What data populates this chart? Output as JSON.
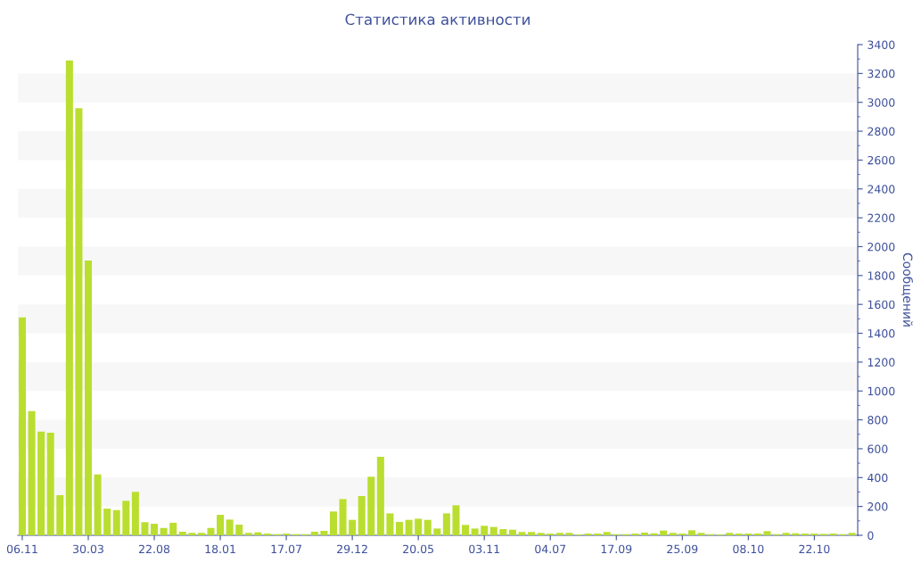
{
  "chart_data": {
    "type": "bar",
    "title": "Статистика активности",
    "ylabel": "Сообщений",
    "categories": [
      "06.11",
      null,
      null,
      null,
      null,
      null,
      null,
      "30.03",
      null,
      null,
      null,
      null,
      null,
      null,
      "22.08",
      null,
      null,
      null,
      null,
      null,
      null,
      "18.01",
      null,
      null,
      null,
      null,
      null,
      null,
      "17.07",
      null,
      null,
      null,
      null,
      null,
      null,
      "29.12",
      null,
      null,
      null,
      null,
      null,
      null,
      "20.05",
      null,
      null,
      null,
      null,
      null,
      null,
      "03.11",
      null,
      null,
      null,
      null,
      null,
      null,
      "04.07",
      null,
      null,
      null,
      null,
      null,
      null,
      "17.09",
      null,
      null,
      null,
      null,
      null,
      null,
      "25.09",
      null,
      null,
      null,
      null,
      null,
      null,
      "08.10",
      null,
      null,
      null,
      null,
      null,
      null,
      "22.10",
      null,
      null,
      null,
      null
    ],
    "values": [
      1510,
      861,
      719,
      711,
      278,
      3290,
      2960,
      1904,
      422,
      185,
      175,
      239,
      301,
      91,
      80,
      51,
      87,
      25,
      17,
      17,
      51,
      142,
      109,
      74,
      17,
      21,
      12,
      8,
      12,
      8,
      8,
      25,
      31,
      165,
      251,
      107,
      272,
      406,
      544,
      152,
      93,
      107,
      115,
      107,
      47,
      152,
      208,
      72,
      47,
      66,
      58,
      43,
      39,
      23,
      23,
      17,
      12,
      17,
      17,
      6,
      12,
      12,
      23,
      8,
      8,
      12,
      19,
      14,
      33,
      17,
      12,
      35,
      17,
      8,
      6,
      17,
      12,
      12,
      12,
      29,
      8,
      17,
      14,
      12,
      12,
      10,
      12,
      8,
      17
    ],
    "color": "#bade30",
    "ylim": [
      0,
      3400
    ],
    "yticks": [
      0,
      200,
      400,
      600,
      800,
      1000,
      1200,
      1400,
      1600,
      1800,
      2000,
      2200,
      2400,
      2600,
      2800,
      3000,
      3200,
      3400
    ],
    "legend": false,
    "bands": [
      {
        "axis": "y",
        "from": 200,
        "to": 400,
        "color": "#f7f7f7"
      },
      {
        "axis": "y",
        "from": 600,
        "to": 800,
        "color": "#f7f7f7"
      },
      {
        "axis": "y",
        "from": 1000,
        "to": 1200,
        "color": "#f7f7f7"
      },
      {
        "axis": "y",
        "from": 1400,
        "to": 1600,
        "color": "#f7f7f7"
      },
      {
        "axis": "y",
        "from": 1800,
        "to": 2000,
        "color": "#f7f7f7"
      },
      {
        "axis": "y",
        "from": 2200,
        "to": 2400,
        "color": "#f7f7f7"
      },
      {
        "axis": "y",
        "from": 2600,
        "to": 2800,
        "color": "#f7f7f7"
      },
      {
        "axis": "y",
        "from": 3000,
        "to": 3200,
        "color": "#f7f7f7"
      }
    ]
  }
}
